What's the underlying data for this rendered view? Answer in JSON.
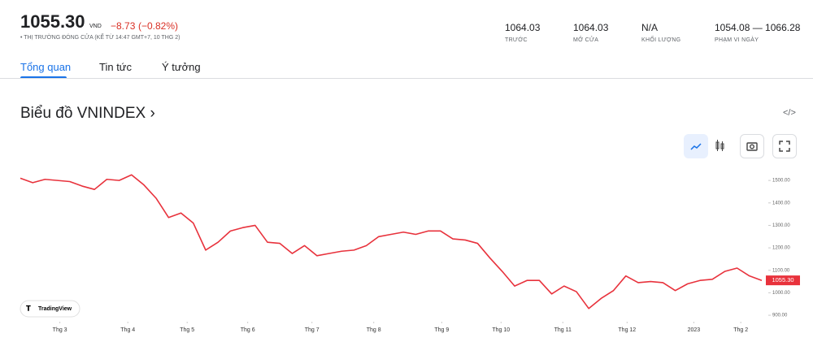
{
  "header": {
    "price": "1055.30",
    "currency": "VND",
    "change": "−8.73",
    "change_pct": "(−0.82%)",
    "status": "• THỊ TRƯỜNG ĐÓNG CỬA (KỂ TỪ 14:47 GMT+7, 10 THG 2)",
    "stats": [
      {
        "value": "1064.03",
        "label": "TRƯỚC"
      },
      {
        "value": "1064.03",
        "label": "MỞ CỬA"
      },
      {
        "value": "N/A",
        "label": "KHỐI LƯỢNG"
      },
      {
        "value": "1054.08 — 1066.28",
        "label": "PHẠM VI NGÀY"
      }
    ]
  },
  "tabs": [
    "Tổng quan",
    "Tin tức",
    "Ý tưởng"
  ],
  "section_title": "Biểu đồ VNINDEX ›",
  "brand": "TradingView",
  "chart_data": {
    "type": "line",
    "color": "#e8323c",
    "values": [
      1510,
      1490,
      1505,
      1500,
      1495,
      1475,
      1460,
      1505,
      1500,
      1525,
      1480,
      1420,
      1335,
      1355,
      1310,
      1190,
      1225,
      1275,
      1290,
      1300,
      1225,
      1220,
      1175,
      1210,
      1165,
      1175,
      1185,
      1190,
      1210,
      1250,
      1260,
      1270,
      1260,
      1275,
      1275,
      1240,
      1235,
      1220,
      1155,
      1095,
      1030,
      1055,
      1055,
      995,
      1030,
      1005,
      930,
      975,
      1010,
      1075,
      1045,
      1050,
      1045,
      1010,
      1040,
      1055,
      1060,
      1095,
      1110,
      1075,
      1055
    ],
    "xlim": [
      0,
      60
    ],
    "xticks": [
      {
        "value": 3.2,
        "label": "Thg 3"
      },
      {
        "value": 8.7,
        "label": "Thg 4"
      },
      {
        "value": 13.5,
        "label": "Thg 5"
      },
      {
        "value": 18.4,
        "label": "Thg 6"
      },
      {
        "value": 23.6,
        "label": "Thg 7"
      },
      {
        "value": 28.6,
        "label": "Thg 8"
      },
      {
        "value": 34.1,
        "label": "Thg 9"
      },
      {
        "value": 38.9,
        "label": "Thg 10"
      },
      {
        "value": 43.9,
        "label": "Thg 11"
      },
      {
        "value": 49.1,
        "label": "Thg 12"
      },
      {
        "value": 54.5,
        "label": "2023"
      },
      {
        "value": 58.3,
        "label": "Thg 2"
      }
    ],
    "ylim": [
      875,
      1580
    ],
    "yticks": [
      {
        "value": 900,
        "label": "900.00"
      },
      {
        "value": 1000,
        "label": "1000.00"
      },
      {
        "value": 1100,
        "label": "1100.00"
      },
      {
        "value": 1200,
        "label": "1200.00"
      },
      {
        "value": 1300,
        "label": "1300.00"
      },
      {
        "value": 1400,
        "label": "1400.00"
      },
      {
        "value": 1500,
        "label": "1500.00"
      }
    ],
    "last_price": {
      "value": 1055.3,
      "label": "1055.30",
      "color": "#e8323c"
    }
  }
}
